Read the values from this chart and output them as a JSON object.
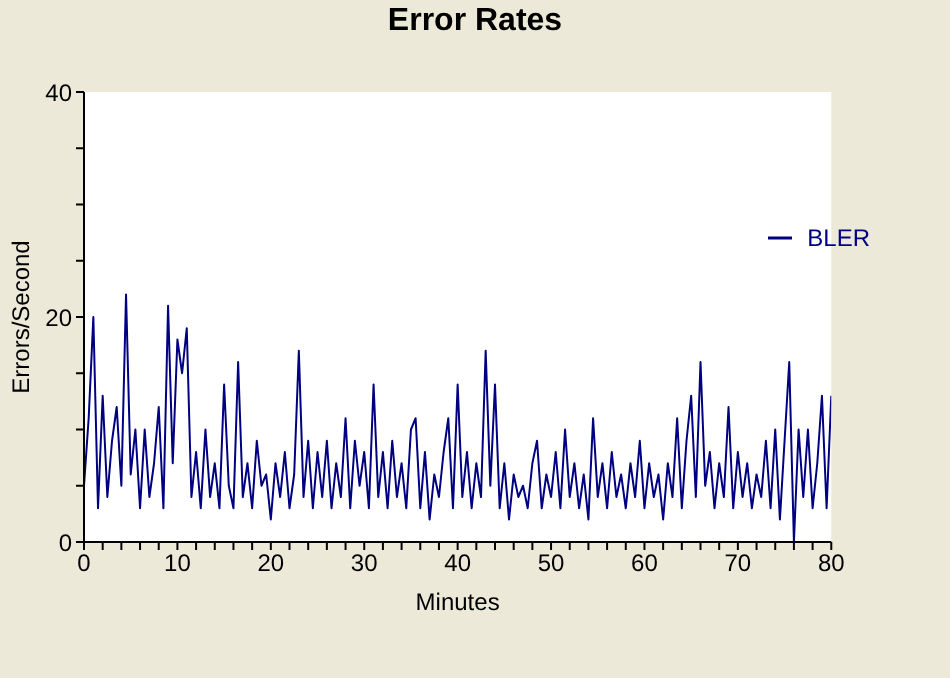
{
  "chart_data": {
    "type": "line",
    "title": "Error Rates",
    "xlabel": "Minutes",
    "ylabel": "Errors/Second",
    "x": [
      0,
      0.5,
      1,
      1.5,
      2,
      2.5,
      3,
      3.5,
      4,
      4.5,
      5,
      5.5,
      6,
      6.5,
      7,
      7.5,
      8,
      8.5,
      9,
      9.5,
      10,
      10.5,
      11,
      11.5,
      12,
      12.5,
      13,
      13.5,
      14,
      14.5,
      15,
      15.5,
      16,
      16.5,
      17,
      17.5,
      18,
      18.5,
      19,
      19.5,
      20,
      20.5,
      21,
      21.5,
      22,
      22.5,
      23,
      23.5,
      24,
      24.5,
      25,
      25.5,
      26,
      26.5,
      27,
      27.5,
      28,
      28.5,
      29,
      29.5,
      30,
      30.5,
      31,
      31.5,
      32,
      32.5,
      33,
      33.5,
      34,
      34.5,
      35,
      35.5,
      36,
      36.5,
      37,
      37.5,
      38,
      38.5,
      39,
      39.5,
      40,
      40.5,
      41,
      41.5,
      42,
      42.5,
      43,
      43.5,
      44,
      44.5,
      45,
      45.5,
      46,
      46.5,
      47,
      47.5,
      48,
      48.5,
      49,
      49.5,
      50,
      50.5,
      51,
      51.5,
      52,
      52.5,
      53,
      53.5,
      54,
      54.5,
      55,
      55.5,
      56,
      56.5,
      57,
      57.5,
      58,
      58.5,
      59,
      59.5,
      60,
      60.5,
      61,
      61.5,
      62,
      62.5,
      63,
      63.5,
      64,
      64.5,
      65,
      65.5,
      66,
      66.5,
      67,
      67.5,
      68,
      68.5,
      69,
      69.5,
      70,
      70.5,
      71,
      71.5,
      72,
      72.5,
      73,
      73.5,
      74,
      74.5,
      75,
      75.5,
      76,
      76.5,
      77,
      77.5,
      78,
      78.5,
      79,
      79.5,
      80
    ],
    "series": [
      {
        "name": "BLER",
        "color": "#000080",
        "values": [
          5,
          11,
          20,
          3,
          13,
          4,
          9,
          12,
          5,
          22,
          6,
          10,
          3,
          10,
          4,
          7,
          12,
          3,
          21,
          7,
          18,
          15,
          19,
          4,
          8,
          3,
          10,
          4,
          7,
          3,
          14,
          5,
          3,
          16,
          4,
          7,
          3,
          9,
          5,
          6,
          2,
          7,
          4,
          8,
          3,
          6,
          17,
          4,
          9,
          3,
          8,
          4,
          9,
          3,
          7,
          4,
          11,
          3,
          9,
          5,
          8,
          3,
          14,
          4,
          8,
          3,
          9,
          4,
          7,
          3,
          10,
          11,
          3,
          8,
          2,
          6,
          4,
          8,
          11,
          3,
          14,
          4,
          8,
          3,
          7,
          4,
          17,
          5,
          14,
          3,
          7,
          2,
          6,
          4,
          5,
          3,
          7,
          9,
          3,
          6,
          4,
          8,
          3,
          10,
          4,
          7,
          3,
          6,
          2,
          11,
          4,
          7,
          3,
          8,
          4,
          6,
          3,
          7,
          4,
          9,
          3,
          7,
          4,
          6,
          2,
          7,
          4,
          11,
          3,
          9,
          13,
          4,
          16,
          5,
          8,
          3,
          7,
          4,
          12,
          3,
          8,
          4,
          7,
          3,
          6,
          4,
          9,
          3,
          10,
          2,
          9,
          16,
          0,
          10,
          4,
          10,
          3,
          7,
          13,
          3,
          13
        ]
      }
    ],
    "xlim": [
      0,
      80
    ],
    "xticks": [
      0,
      {
        "value": 2,
        "label": null
      },
      {
        "value": 4,
        "label": null
      },
      {
        "value": 6,
        "label": null
      },
      {
        "value": 8,
        "label": null
      },
      10,
      {
        "value": 12,
        "label": null
      },
      {
        "value": 14,
        "label": null
      },
      {
        "value": 16,
        "label": null
      },
      {
        "value": 18,
        "label": null
      },
      20,
      {
        "value": 22,
        "label": null
      },
      {
        "value": 24,
        "label": null
      },
      {
        "value": 26,
        "label": null
      },
      {
        "value": 28,
        "label": null
      },
      30,
      {
        "value": 32,
        "label": null
      },
      {
        "value": 34,
        "label": null
      },
      {
        "value": 36,
        "label": null
      },
      {
        "value": 38,
        "label": null
      },
      40,
      {
        "value": 42,
        "label": null
      },
      {
        "value": 44,
        "label": null
      },
      {
        "value": 46,
        "label": null
      },
      {
        "value": 48,
        "label": null
      },
      50,
      {
        "value": 52,
        "label": null
      },
      {
        "value": 54,
        "label": null
      },
      {
        "value": 56,
        "label": null
      },
      {
        "value": 58,
        "label": null
      },
      60,
      {
        "value": 62,
        "label": null
      },
      {
        "value": 64,
        "label": null
      },
      {
        "value": 66,
        "label": null
      },
      {
        "value": 68,
        "label": null
      },
      70,
      {
        "value": 72,
        "label": null
      },
      {
        "value": 74,
        "label": null
      },
      {
        "value": 76,
        "label": null
      },
      {
        "value": 78,
        "label": null
      },
      80
    ],
    "ylim": [
      0,
      40
    ],
    "yticks": [
      0,
      {
        "value": 5,
        "label": null
      },
      {
        "value": 10,
        "label": null
      },
      {
        "value": 15,
        "label": null
      },
      20,
      {
        "value": 25,
        "label": null
      },
      {
        "value": 30,
        "label": null
      },
      {
        "value": 35,
        "label": null
      },
      40
    ],
    "legend": "top right"
  }
}
